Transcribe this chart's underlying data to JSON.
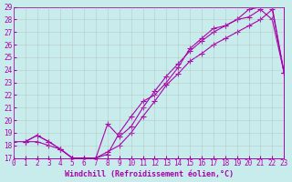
{
  "xlabel": "Windchill (Refroidissement éolien,°C)",
  "xlim": [
    0,
    23
  ],
  "ylim": [
    17,
    29
  ],
  "xticks": [
    0,
    1,
    2,
    3,
    4,
    5,
    6,
    7,
    8,
    9,
    10,
    11,
    12,
    13,
    14,
    15,
    16,
    17,
    18,
    19,
    20,
    21,
    22,
    23
  ],
  "yticks": [
    17,
    18,
    19,
    20,
    21,
    22,
    23,
    24,
    25,
    26,
    27,
    28,
    29
  ],
  "bg_color": "#c8ecec",
  "line_color": "#aa00aa",
  "line_width": 0.8,
  "marker": "+",
  "marker_size": 4,
  "marker_edge_width": 0.8,
  "grid_color": "#aaaaaa",
  "tick_fontsize": 5.5,
  "xlabel_fontsize": 6.0,
  "font_family": "monospace",
  "traces": [
    {
      "x": [
        1,
        2,
        3,
        4,
        5,
        6,
        7,
        8,
        9,
        10,
        11,
        12,
        13,
        14,
        15,
        16,
        17,
        18,
        19,
        20,
        21,
        22,
        23
      ],
      "y": [
        18.3,
        18.8,
        18.3,
        17.7,
        17.0,
        17.0,
        17.0,
        17.3,
        19.0,
        20.3,
        21.5,
        22.0,
        23.0,
        24.2,
        25.7,
        26.5,
        27.3,
        27.5,
        28.0,
        28.8,
        29.0,
        29.0,
        23.8
      ]
    },
    {
      "x": [
        1,
        2,
        3,
        4,
        5,
        6,
        7,
        8,
        9,
        10,
        11,
        12,
        13,
        14,
        15,
        16,
        17,
        18,
        19,
        20,
        21,
        22,
        23
      ],
      "y": [
        18.3,
        18.8,
        18.3,
        17.7,
        17.0,
        17.0,
        17.0,
        19.7,
        18.7,
        19.5,
        21.0,
        22.3,
        23.5,
        24.5,
        25.5,
        26.3,
        27.0,
        27.5,
        28.0,
        28.2,
        28.8,
        28.0,
        23.8
      ]
    },
    {
      "x": [
        0,
        1,
        2,
        3,
        4,
        5,
        6,
        7,
        8,
        9,
        10,
        11,
        12,
        13,
        14,
        15,
        16,
        17,
        18,
        19,
        20,
        21,
        22,
        23
      ],
      "y": [
        18.3,
        18.3,
        18.3,
        18.0,
        17.7,
        17.0,
        17.0,
        17.0,
        17.5,
        18.0,
        19.0,
        20.3,
        21.5,
        22.8,
        23.7,
        24.7,
        25.3,
        26.0,
        26.5,
        27.0,
        27.5,
        28.0,
        28.8,
        23.8
      ]
    }
  ]
}
